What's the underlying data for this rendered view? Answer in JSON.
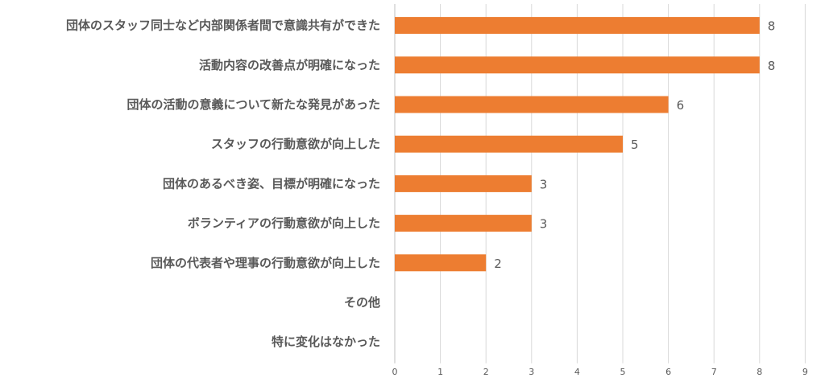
{
  "chart_data": {
    "type": "bar",
    "orientation": "horizontal",
    "categories": [
      "団体のスタッフ同士など内部関係者間で意識共有ができた",
      "活動内容の改善点が明確になった",
      "団体の活動の意義について新たな発見があった",
      "スタッフの行動意欲が向上した",
      "団体のあるべき姿、目標が明確になった",
      "ボランティアの行動意欲が向上した",
      "団体の代表者や理事の行動意欲が向上した",
      "その他",
      "特に変化はなかった"
    ],
    "values": [
      8,
      8,
      6,
      5,
      3,
      3,
      2,
      0,
      0
    ],
    "value_labels": [
      "8",
      "8",
      "6",
      "5",
      "3",
      "3",
      "2",
      "",
      ""
    ],
    "xlim": [
      0,
      9
    ],
    "x_ticks": [
      "0",
      "1",
      "2",
      "3",
      "4",
      "5",
      "6",
      "7",
      "8",
      "9"
    ],
    "title": "",
    "xlabel": "",
    "ylabel": "",
    "grid": true,
    "legend": "none",
    "bar_color": "#ed7d31"
  }
}
